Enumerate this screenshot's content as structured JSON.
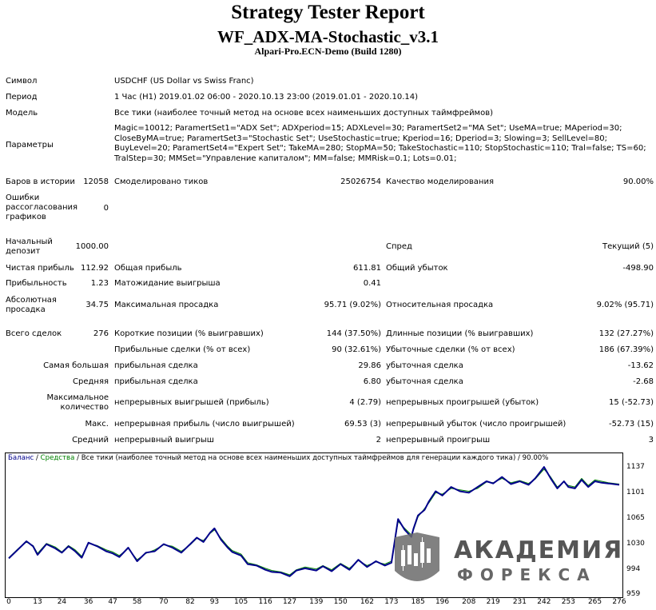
{
  "header": {
    "title": "Strategy Tester Report",
    "subtitle": "WF_ADX-MA-Stochastic_v3.1",
    "build": "Alpari-Pro.ECN-Demo (Build 1280)"
  },
  "info": {
    "symbol_label": "Символ",
    "symbol_value": "USDCHF (US Dollar vs Swiss Franc)",
    "period_label": "Период",
    "period_value": "1 Час (H1) 2019.01.02 06:00 - 2020.10.13 23:00 (2019.01.01 - 2020.10.14)",
    "model_label": "Модель",
    "model_value": "Все тики (наиболее точный метод на основе всех наименьших доступных таймфреймов)",
    "params_label": "Параметры",
    "params_value": "Magic=10012; ParamertSet1=\"ADX Set\"; ADXperiod=15; ADXLevel=30; ParamertSet2=\"MA Set\"; UseMA=true; MAperiod=30; CloseByMA=true; ParamertSet3=\"Stochastic Set\"; UseStochastic=true; Kperiod=16; Dperiod=3; Slowing=3; SellLevel=80; BuyLevel=20; ParamertSet4=\"Expert Set\"; TakeMA=280; StopMA=50; TakeStochastic=110; StopStochastic=110; Tral=false; TS=60; TralStep=30; MMSet=\"Управление капиталом\"; MM=false; MMRisk=0.1; Lots=0.01;"
  },
  "stats": {
    "bars_label": "Баров в истории",
    "bars_value": "12058",
    "ticks_label": "Смоделировано тиков",
    "ticks_value": "25026754",
    "quality_label": "Качество моделирования",
    "quality_value": "90.00%",
    "errors_label": "Ошибки рассогласования графиков",
    "errors_value": "0",
    "deposit_label": "Начальный депозит",
    "deposit_value": "1000.00",
    "spread_label": "Спред",
    "spread_value": "Текущий (5)",
    "netprofit_label": "Чистая прибыль",
    "netprofit_value": "112.92",
    "grossprofit_label": "Общая прибыль",
    "grossprofit_value": "611.81",
    "grossloss_label": "Общий убыток",
    "grossloss_value": "-498.90",
    "pf_label": "Прибыльность",
    "pf_value": "1.23",
    "expected_label": "Матожидание выигрыша",
    "expected_value": "0.41",
    "absdd_label": "Абсолютная просадка",
    "absdd_value": "34.75",
    "maxdd_label": "Максимальная просадка",
    "maxdd_value": "95.71 (9.02%)",
    "reldd_label": "Относительная просадка",
    "reldd_value": "9.02% (95.71)",
    "trades_label": "Всего сделок",
    "trades_value": "276",
    "short_label": "Короткие позиции (% выигравших)",
    "short_value": "144 (37.50%)",
    "long_label": "Длинные позиции (% выигравших)",
    "long_value": "132 (27.27%)",
    "profitable_label": "Прибыльные сделки (% от всех)",
    "profitable_value": "90 (32.61%)",
    "losing_label": "Убыточные сделки (% от всех)",
    "losing_value": "186 (67.39%)",
    "largest_label": "Самая большая",
    "largest_profit_label": "прибыльная сделка",
    "largest_profit_value": "29.86",
    "largest_loss_label": "убыточная сделка",
    "largest_loss_value": "-13.62",
    "average_label": "Средняя",
    "average_profit_label": "прибыльная сделка",
    "average_profit_value": "6.80",
    "average_loss_label": "убыточная сделка",
    "average_loss_value": "-2.68",
    "maxcount_label": "Максимальное количество",
    "maxcons_wins_label": "непрерывных выигрышей (прибыль)",
    "maxcons_wins_value": "4 (2.79)",
    "maxcons_losses_label": "непрерывных проигрышей (убыток)",
    "maxcons_losses_value": "15 (-52.73)",
    "max_label": "Макс.",
    "maxcons_profit_label": "непрерывная прибыль (число выигрышей)",
    "maxcons_profit_value": "69.53 (3)",
    "maxcons_loss_label": "непрерывный убыток (число проигрышей)",
    "maxcons_loss_value": "-52.73 (15)",
    "avg_label": "Средний",
    "avgcons_wins_label": "непрерывный выигрыш",
    "avgcons_wins_value": "2",
    "avgcons_losses_label": "непрерывный проигрыш",
    "avgcons_losses_value": "3"
  },
  "chart_caption": {
    "balance": "Баланс",
    "sep1": " / ",
    "equity": "Средства",
    "rest": " / Все тики (наиболее точный метод на основе всех наименьших доступных таймфреймов для генерации каждого тика) / 90.00%"
  },
  "logo": {
    "line1": "АКАДЕМИЯ",
    "line2": "ФОРЕКСА"
  },
  "colors": {
    "balance": "#00008b",
    "equity": "#008000",
    "text": "#000000"
  },
  "chart_data": {
    "type": "line",
    "ylim": [
      959,
      1137
    ],
    "y_ticks": [
      1137,
      1101,
      1065,
      1030,
      994,
      959
    ],
    "x_ticks": [
      0,
      13,
      24,
      36,
      47,
      58,
      70,
      82,
      93,
      105,
      116,
      127,
      139,
      150,
      162,
      173,
      185,
      196,
      208,
      219,
      231,
      242,
      253,
      265,
      276
    ],
    "xlim": [
      0,
      276
    ],
    "series": [
      {
        "name": "Баланс",
        "x": [
          0,
          4,
          8,
          11,
          13,
          17,
          21,
          24,
          27,
          30,
          33,
          36,
          40,
          44,
          47,
          50,
          54,
          58,
          62,
          66,
          70,
          74,
          78,
          82,
          85,
          88,
          91,
          93,
          96,
          99,
          101,
          105,
          108,
          112,
          116,
          119,
          123,
          127,
          130,
          134,
          139,
          142,
          146,
          150,
          154,
          158,
          162,
          166,
          170,
          173,
          176,
          179,
          182,
          183,
          185,
          188,
          190,
          193,
          196,
          200,
          204,
          208,
          212,
          216,
          219,
          223,
          227,
          231,
          235,
          238,
          242,
          245,
          248,
          251,
          253,
          256,
          259,
          262,
          265,
          268,
          271,
          276
        ],
        "values": [
          1010,
          1022,
          1034,
          1027,
          1015,
          1030,
          1024,
          1018,
          1027,
          1020,
          1011,
          1032,
          1027,
          1020,
          1017,
          1012,
          1025,
          1006,
          1018,
          1020,
          1030,
          1025,
          1018,
          1030,
          1039,
          1033,
          1046,
          1052,
          1036,
          1025,
          1019,
          1014,
          1002,
          1000,
          994,
          991,
          990,
          985,
          993,
          996,
          993,
          999,
          992,
          1002,
          994,
          1008,
          998,
          1006,
          1000,
          1004,
          1065,
          1050,
          1040,
          1052,
          1070,
          1078,
          1090,
          1104,
          1098,
          1110,
          1104,
          1102,
          1110,
          1118,
          1115,
          1124,
          1114,
          1118,
          1113,
          1122,
          1138,
          1122,
          1108,
          1118,
          1110,
          1108,
          1120,
          1110,
          1118,
          1116,
          1115,
          1113
        ]
      },
      {
        "name": "Средства",
        "x": [
          0,
          4,
          8,
          11,
          13,
          17,
          21,
          24,
          27,
          30,
          33,
          36,
          40,
          44,
          47,
          50,
          54,
          58,
          62,
          66,
          70,
          74,
          78,
          82,
          85,
          88,
          91,
          93,
          96,
          99,
          101,
          105,
          108,
          112,
          116,
          119,
          123,
          127,
          130,
          134,
          139,
          142,
          146,
          150,
          154,
          158,
          162,
          166,
          170,
          173,
          176,
          179,
          182,
          183,
          185,
          188,
          190,
          193,
          196,
          200,
          204,
          208,
          212,
          216,
          219,
          223,
          227,
          231,
          235,
          238,
          242,
          245,
          248,
          251,
          253,
          256,
          259,
          262,
          265,
          268,
          271,
          276
        ],
        "values": [
          1011,
          1023,
          1033,
          1028,
          1017,
          1031,
          1026,
          1019,
          1028,
          1022,
          1013,
          1031,
          1028,
          1022,
          1019,
          1014,
          1024,
          1008,
          1017,
          1022,
          1029,
          1027,
          1020,
          1029,
          1038,
          1035,
          1045,
          1050,
          1038,
          1027,
          1021,
          1016,
          1004,
          1001,
          996,
          993,
          991,
          987,
          994,
          998,
          995,
          1000,
          994,
          1003,
          996,
          1007,
          1000,
          1005,
          1002,
          1006,
          1062,
          1052,
          1043,
          1050,
          1068,
          1080,
          1088,
          1102,
          1100,
          1108,
          1106,
          1104,
          1108,
          1117,
          1116,
          1122,
          1116,
          1119,
          1115,
          1121,
          1135,
          1124,
          1110,
          1117,
          1112,
          1110,
          1122,
          1112,
          1120,
          1118,
          1116,
          1114
        ]
      }
    ]
  }
}
